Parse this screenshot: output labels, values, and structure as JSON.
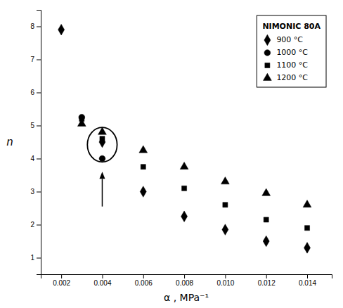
{
  "chart_data": {
    "type": "scatter",
    "x_label": "α , MPa⁻¹",
    "y_label": "n",
    "xlim": [
      0.001,
      0.0152
    ],
    "ylim": [
      0.5,
      8.5
    ],
    "xticks": [
      0.002,
      0.004,
      0.006,
      0.008,
      {
        "value": 0.01,
        "label": "0.010"
      },
      0.012,
      0.014
    ],
    "yticks": [
      1,
      2,
      3,
      4,
      5,
      6,
      7,
      8
    ],
    "grid": false,
    "legend": "upper-right",
    "legend_title": "NIMONIC 80A",
    "series": [
      {
        "name": "900 °C",
        "color": "#000000",
        "marker": "diamond",
        "x": [
          0.002,
          0.004,
          0.006,
          0.008,
          0.01,
          0.012,
          0.014
        ],
        "values": [
          7.9,
          4.5,
          3.0,
          2.25,
          1.85,
          1.5,
          1.3
        ]
      },
      {
        "name": "1000 °C",
        "color": "#000000",
        "marker": "circle",
        "x": [
          0.003,
          0.004
        ],
        "values": [
          5.25,
          4.0
        ]
      },
      {
        "name": "1100 °C",
        "color": "#000000",
        "marker": "square",
        "x": [
          0.003,
          0.004,
          0.006,
          0.008,
          0.01,
          0.012,
          0.014
        ],
        "values": [
          5.2,
          4.6,
          3.75,
          3.1,
          2.6,
          2.15,
          1.9
        ]
      },
      {
        "name": "1200 °C",
        "color": "#000000",
        "marker": "triangle",
        "x": [
          0.003,
          0.004,
          0.006,
          0.008,
          0.01,
          0.012,
          0.014
        ],
        "values": [
          5.05,
          4.8,
          4.25,
          3.75,
          3.3,
          2.95,
          2.6
        ]
      }
    ],
    "ellipse": {
      "center_x": 0.004,
      "center_y": 4.42,
      "width": 0.00145,
      "height": 1.05
    },
    "arrow": {
      "x": 0.004,
      "y_start": 2.55,
      "y_end": 3.6
    }
  }
}
